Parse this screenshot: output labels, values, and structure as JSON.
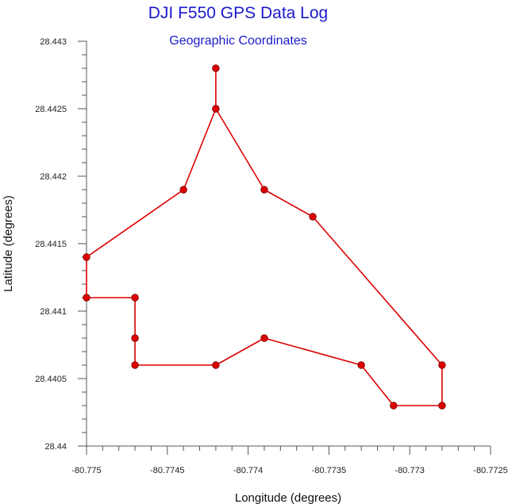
{
  "chart_data": {
    "type": "line",
    "title": "DJI F550 GPS Data Log",
    "subtitle": "Geographic Coordinates",
    "xlabel": "Longitude (degrees)",
    "ylabel": "Latitude (degrees)",
    "xlim": [
      -80.775,
      -80.7725
    ],
    "ylim": [
      28.44,
      28.443
    ],
    "x_ticks": [
      -80.775,
      -80.7745,
      -80.774,
      -80.7735,
      -80.773,
      -80.7725
    ],
    "x_tick_labels": [
      "-80.775",
      "-80.7745",
      "-80.774",
      "-80.7735",
      "-80.773",
      "-80.7725"
    ],
    "y_ticks": [
      28.44,
      28.4405,
      28.441,
      28.4415,
      28.442,
      28.4425,
      28.443
    ],
    "y_tick_labels": [
      "28.44",
      "28.4405",
      "28.441",
      "28.4415",
      "28.442",
      "28.4425",
      "28.443"
    ],
    "grid": false,
    "line_color": "#dd0000",
    "marker_color": "#dd0000",
    "title_color": "#1a1acc",
    "series": [
      {
        "x": [
          -80.7742,
          -80.7742,
          -80.7744,
          -80.775,
          -80.775,
          -80.7747,
          -80.7747,
          -80.7747,
          -80.7742,
          -80.7739,
          -80.7733,
          -80.7731,
          -80.7728,
          -80.7728,
          -80.7736,
          -80.7739,
          -80.7742
        ],
        "y": [
          28.4428,
          28.4425,
          28.4419,
          28.4414,
          28.4411,
          28.4411,
          28.4408,
          28.4406,
          28.4406,
          28.4408,
          28.4406,
          28.4403,
          28.4403,
          28.4406,
          28.4417,
          28.4419,
          28.4425
        ]
      }
    ]
  }
}
